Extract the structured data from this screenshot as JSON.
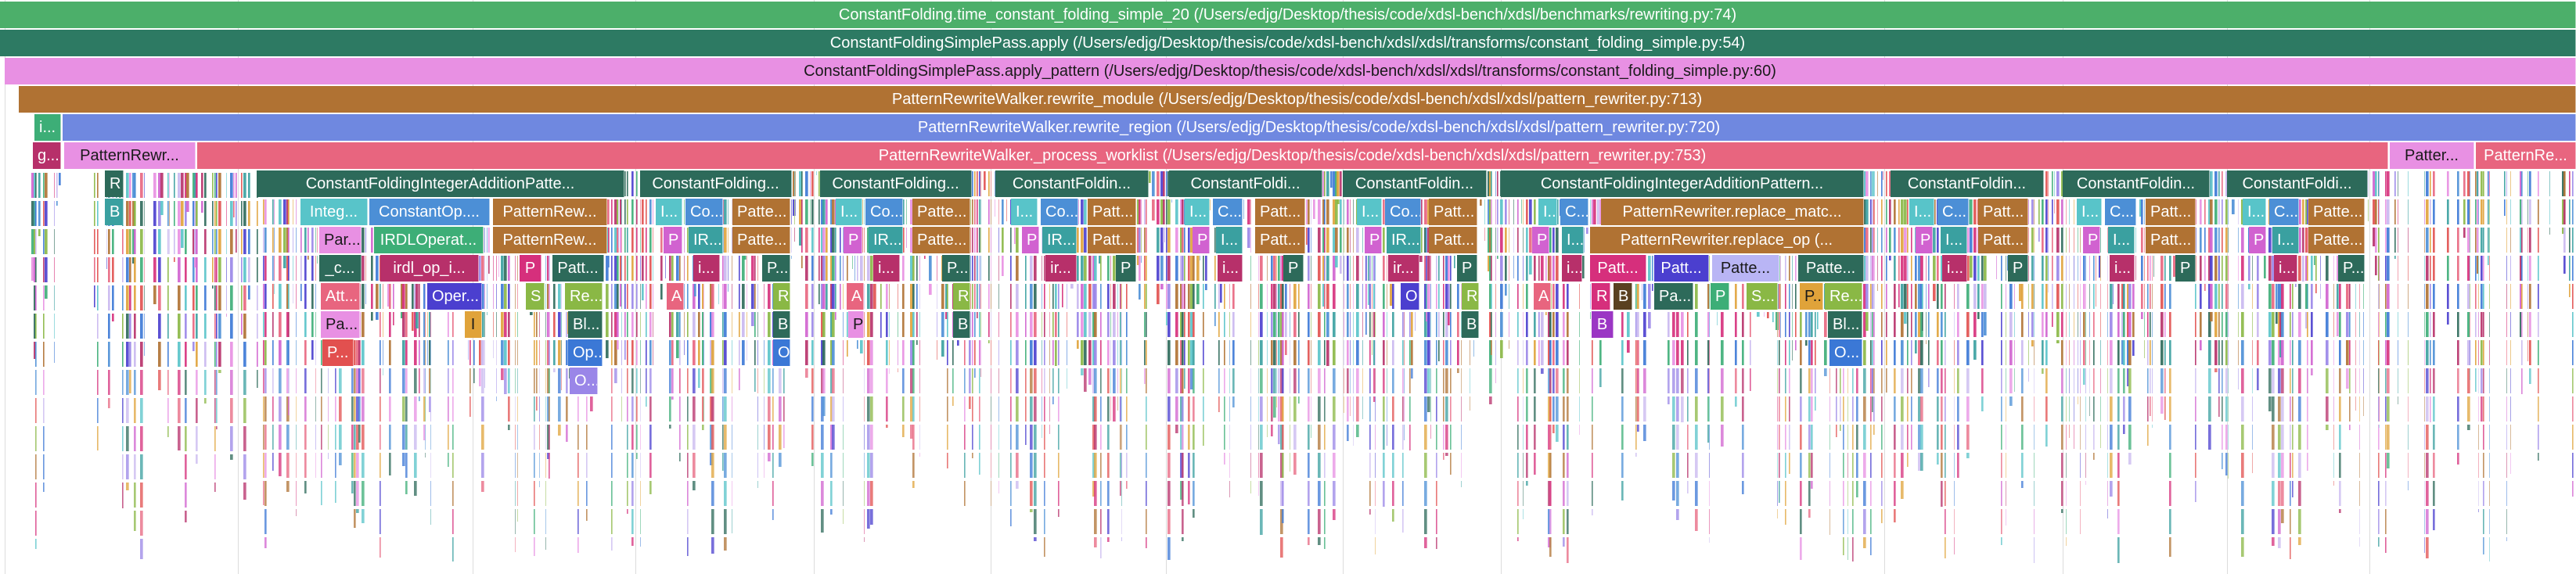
{
  "frames": [
    {
      "id": "f1",
      "label": "ConstantFolding.time_constant_folding_simple_20 (/Users/edjg/Desktop/thesis/code/xdsl-bench/xdsl/benchmarks/rewriting.py:74)",
      "color": "#4caf6a",
      "dark": false
    },
    {
      "id": "f2",
      "label": "ConstantFoldingSimplePass.apply (/Users/edjg/Desktop/thesis/code/xdsl-bench/xdsl/xdsl/transforms/constant_folding_simple.py:54)",
      "color": "#2d7a63",
      "dark": false
    },
    {
      "id": "f3",
      "label": "ConstantFoldingSimplePass.apply_pattern (/Users/edjg/Desktop/thesis/code/xdsl-bench/xdsl/xdsl/transforms/constant_folding_simple.py:60)",
      "color": "#e890e3",
      "dark": true
    },
    {
      "id": "f4",
      "label": "PatternRewriteWalker.rewrite_module (/Users/edjg/Desktop/thesis/code/xdsl-bench/xdsl/xdsl/pattern_rewriter.py:713)",
      "color": "#b07233",
      "dark": false
    },
    {
      "id": "f5",
      "label": "PatternRewriteWalker.rewrite_region (/Users/edjg/Desktop/thesis/code/xdsl-bench/xdsl/xdsl/pattern_rewriter.py:720)",
      "color": "#6f88e0",
      "dark": false
    },
    {
      "id": "f6",
      "label": "PatternRewriteWalker._process_worklist (/Users/edjg/Desktop/thesis/code/xdsl-bench/xdsl/xdsl/pattern_rewriter.py:753)",
      "color": "#e8657f",
      "dark": false
    },
    {
      "id": "s1",
      "label": "i...",
      "color": "#3dae77",
      "dark": false
    },
    {
      "id": "s2",
      "label": "g...",
      "color": "#b7306a",
      "dark": false
    },
    {
      "id": "s3",
      "label": "PatternRewr...",
      "color": "#e890e3",
      "dark": true
    },
    {
      "id": "s4",
      "label": "Patter...",
      "color": "#e890e3",
      "dark": true
    },
    {
      "id": "s5",
      "label": "PatternRe...",
      "color": "#e8657f",
      "dark": false
    },
    {
      "id": "s6",
      "label": "R",
      "color": "#2d6a5a",
      "dark": false
    },
    {
      "id": "s7",
      "label": "B",
      "color": "#3aa0a0",
      "dark": false
    },
    {
      "id": "c1",
      "label": "ConstantFoldingIntegerAdditionPatte...",
      "color": "#2d6a5a",
      "dark": false
    },
    {
      "id": "c2",
      "label": "ConstantFolding...",
      "color": "#2d6a5a",
      "dark": false
    },
    {
      "id": "c3",
      "label": "ConstantFolding...",
      "color": "#2d6a5a",
      "dark": false
    },
    {
      "id": "c4",
      "label": "ConstantFoldin...",
      "color": "#2d6a5a",
      "dark": false
    },
    {
      "id": "c5",
      "label": "ConstantFoldi...",
      "color": "#2d6a5a",
      "dark": false
    },
    {
      "id": "c6",
      "label": "ConstantFoldin...",
      "color": "#2d6a5a",
      "dark": false
    },
    {
      "id": "c7",
      "label": "ConstantFoldingIntegerAdditionPattern...",
      "color": "#2d6a5a",
      "dark": false
    },
    {
      "id": "c8",
      "label": "ConstantFoldin...",
      "color": "#2d6a5a",
      "dark": false
    },
    {
      "id": "c9",
      "label": "ConstantFoldin...",
      "color": "#2d6a5a",
      "dark": false
    },
    {
      "id": "c10",
      "label": "ConstantFoldi...",
      "color": "#2d6a5a",
      "dark": false
    },
    {
      "id": "a1",
      "label": "Integ...",
      "color": "#58c4c9",
      "dark": false
    },
    {
      "id": "a2",
      "label": "ConstantOp....",
      "color": "#4c8fd6",
      "dark": false
    },
    {
      "id": "a3",
      "label": "PatternRew...",
      "color": "#b07233",
      "dark": false
    },
    {
      "id": "a4",
      "label": "Par...",
      "color": "#e890e3",
      "dark": true
    },
    {
      "id": "a5",
      "label": "IRDLOperat...",
      "color": "#3dae77",
      "dark": false
    },
    {
      "id": "a6",
      "label": "PatternRew...",
      "color": "#b07233",
      "dark": false
    },
    {
      "id": "a7",
      "label": "_c...",
      "color": "#2d6a5a",
      "dark": false
    },
    {
      "id": "a8",
      "label": "irdl_op_i...",
      "color": "#b7306a",
      "dark": false
    },
    {
      "id": "a9",
      "label": "P",
      "color": "#d62f7c",
      "dark": false
    },
    {
      "id": "a10",
      "label": "Patt...",
      "color": "#2d6a5a",
      "dark": false
    },
    {
      "id": "a11",
      "label": "Att...",
      "color": "#e8657f",
      "dark": false
    },
    {
      "id": "a12",
      "label": "Oper...",
      "color": "#4b3fcf",
      "dark": false
    },
    {
      "id": "a13",
      "label": "S",
      "color": "#8ab845",
      "dark": false
    },
    {
      "id": "a14",
      "label": "Re...",
      "color": "#8ab845",
      "dark": false
    },
    {
      "id": "a15",
      "label": "Pa...",
      "color": "#e890e3",
      "dark": true
    },
    {
      "id": "a16",
      "label": "I",
      "color": "#e0a33a",
      "dark": true
    },
    {
      "id": "a17",
      "label": "Bl...",
      "color": "#2d6a5a",
      "dark": false
    },
    {
      "id": "a18",
      "label": "P...",
      "color": "#e2504f",
      "dark": false
    },
    {
      "id": "a19",
      "label": "Op...",
      "color": "#3b78d6",
      "dark": false
    },
    {
      "id": "a20",
      "label": "O...",
      "color": "#9a86e8",
      "dark": false
    },
    {
      "id": "b1",
      "label": "I...",
      "color": "#58c4c9",
      "dark": false
    },
    {
      "id": "b2",
      "label": "Co...",
      "color": "#4c8fd6",
      "dark": false
    },
    {
      "id": "b3",
      "label": "Patte...",
      "color": "#b07233",
      "dark": false
    },
    {
      "id": "b4",
      "label": "P",
      "color": "#d162d0",
      "dark": false
    },
    {
      "id": "b5",
      "label": "IR...",
      "color": "#3aa0a0",
      "dark": false
    },
    {
      "id": "b6",
      "label": "Patte...",
      "color": "#b07233",
      "dark": false
    },
    {
      "id": "b7",
      "label": "i...",
      "color": "#b7306a",
      "dark": false
    },
    {
      "id": "b8",
      "label": "P...",
      "color": "#2d6a5a",
      "dark": false
    },
    {
      "id": "b9",
      "label": "A",
      "color": "#e8657f",
      "dark": false
    },
    {
      "id": "b10",
      "label": "R",
      "color": "#8ab845",
      "dark": false
    },
    {
      "id": "b11",
      "label": "B",
      "color": "#2d6a5a",
      "dark": false
    },
    {
      "id": "b12",
      "label": "O",
      "color": "#3b78d6",
      "dark": false
    },
    {
      "id": "d1",
      "label": "I...",
      "color": "#58c4c9",
      "dark": false
    },
    {
      "id": "d2",
      "label": "Co...",
      "color": "#4c8fd6",
      "dark": false
    },
    {
      "id": "d3",
      "label": "Patte...",
      "color": "#b07233",
      "dark": false
    },
    {
      "id": "d4",
      "label": "P",
      "color": "#d162d0",
      "dark": false
    },
    {
      "id": "d5",
      "label": "IR...",
      "color": "#3aa0a0",
      "dark": false
    },
    {
      "id": "d6",
      "label": "Patte...",
      "color": "#b07233",
      "dark": false
    },
    {
      "id": "d7",
      "label": "i...",
      "color": "#b7306a",
      "dark": false
    },
    {
      "id": "d8",
      "label": "P...",
      "color": "#2d6a5a",
      "dark": false
    },
    {
      "id": "d9",
      "label": "A",
      "color": "#e8657f",
      "dark": false
    },
    {
      "id": "d10",
      "label": "R",
      "color": "#8ab845",
      "dark": false
    },
    {
      "id": "d11",
      "label": "P",
      "color": "#e890e3",
      "dark": true
    },
    {
      "id": "d12",
      "label": "B",
      "color": "#2d6a5a",
      "dark": false
    },
    {
      "id": "e1",
      "label": "I...",
      "color": "#58c4c9",
      "dark": false
    },
    {
      "id": "e2",
      "label": "Co...",
      "color": "#4c8fd6",
      "dark": false
    },
    {
      "id": "e3",
      "label": "Patt...",
      "color": "#b07233",
      "dark": false
    },
    {
      "id": "e4",
      "label": "P",
      "color": "#d162d0",
      "dark": false
    },
    {
      "id": "e5",
      "label": "IR...",
      "color": "#3aa0a0",
      "dark": false
    },
    {
      "id": "e6",
      "label": "Patt...",
      "color": "#b07233",
      "dark": false
    },
    {
      "id": "e7",
      "label": "ir...",
      "color": "#b7306a",
      "dark": false
    },
    {
      "id": "e8",
      "label": "P",
      "color": "#2d6a5a",
      "dark": false
    },
    {
      "id": "g1",
      "label": "I...",
      "color": "#58c4c9",
      "dark": false
    },
    {
      "id": "g2",
      "label": "C...",
      "color": "#4c8fd6",
      "dark": false
    },
    {
      "id": "g3",
      "label": "Patt...",
      "color": "#b07233",
      "dark": false
    },
    {
      "id": "g4",
      "label": "P",
      "color": "#d162d0",
      "dark": false
    },
    {
      "id": "g5",
      "label": "I...",
      "color": "#3aa0a0",
      "dark": false
    },
    {
      "id": "g6",
      "label": "Patt...",
      "color": "#b07233",
      "dark": false
    },
    {
      "id": "g7",
      "label": "i...",
      "color": "#b7306a",
      "dark": false
    },
    {
      "id": "g8",
      "label": "P",
      "color": "#2d6a5a",
      "dark": false
    },
    {
      "id": "h1",
      "label": "I...",
      "color": "#58c4c9",
      "dark": false
    },
    {
      "id": "h2",
      "label": "Co...",
      "color": "#4c8fd6",
      "dark": false
    },
    {
      "id": "h3",
      "label": "Patt...",
      "color": "#b07233",
      "dark": false
    },
    {
      "id": "h4",
      "label": "P",
      "color": "#d162d0",
      "dark": false
    },
    {
      "id": "h5",
      "label": "IR...",
      "color": "#3aa0a0",
      "dark": false
    },
    {
      "id": "h6",
      "label": "Patt...",
      "color": "#b07233",
      "dark": false
    },
    {
      "id": "h7",
      "label": "ir...",
      "color": "#b7306a",
      "dark": false
    },
    {
      "id": "h8",
      "label": "P",
      "color": "#2d6a5a",
      "dark": false
    },
    {
      "id": "h9",
      "label": "O",
      "color": "#4b3fcf",
      "dark": false
    },
    {
      "id": "h10",
      "label": "R",
      "color": "#8ab845",
      "dark": false
    },
    {
      "id": "h11",
      "label": "B",
      "color": "#2d6a5a",
      "dark": false
    },
    {
      "id": "k1",
      "label": "I...",
      "color": "#58c4c9",
      "dark": false
    },
    {
      "id": "k2",
      "label": "C...",
      "color": "#4c8fd6",
      "dark": false
    },
    {
      "id": "k3",
      "label": "PatternRewriter.replace_matc...",
      "color": "#b07233",
      "dark": false
    },
    {
      "id": "k4",
      "label": "P",
      "color": "#d162d0",
      "dark": false
    },
    {
      "id": "k5",
      "label": "I...",
      "color": "#3aa0a0",
      "dark": false
    },
    {
      "id": "k6",
      "label": "PatternRewriter.replace_op (...",
      "color": "#b07233",
      "dark": false
    },
    {
      "id": "k7",
      "label": "i...",
      "color": "#b7306a",
      "dark": false
    },
    {
      "id": "k8",
      "label": "Patt...",
      "color": "#d62f7c",
      "dark": false
    },
    {
      "id": "k9",
      "label": "Patt...",
      "color": "#4b3fcf",
      "dark": false
    },
    {
      "id": "k10",
      "label": "Patte...",
      "color": "#b9b5f5",
      "dark": true
    },
    {
      "id": "k11",
      "label": "Patte...",
      "color": "#2d6a5a",
      "dark": false
    },
    {
      "id": "k12",
      "label": "A",
      "color": "#e8657f",
      "dark": false
    },
    {
      "id": "k13",
      "label": "R",
      "color": "#d62f7c",
      "dark": false
    },
    {
      "id": "k14",
      "label": "B",
      "color": "#5a4020",
      "dark": false
    },
    {
      "id": "k15",
      "label": "Pa...",
      "color": "#2d6a5a",
      "dark": false
    },
    {
      "id": "k16",
      "label": "P",
      "color": "#3dae77",
      "dark": false
    },
    {
      "id": "k17",
      "label": "S...",
      "color": "#8ab845",
      "dark": false
    },
    {
      "id": "k18",
      "label": "P...",
      "color": "#e0a33a",
      "dark": true
    },
    {
      "id": "k19",
      "label": "Re...",
      "color": "#8ab845",
      "dark": false
    },
    {
      "id": "k20",
      "label": "B",
      "color": "#9b36c4",
      "dark": false
    },
    {
      "id": "k21",
      "label": "Bl...",
      "color": "#2d6a5a",
      "dark": false
    },
    {
      "id": "k22",
      "label": "O...",
      "color": "#3b78d6",
      "dark": false
    },
    {
      "id": "m1",
      "label": "I...",
      "color": "#58c4c9",
      "dark": false
    },
    {
      "id": "m2",
      "label": "C...",
      "color": "#4c8fd6",
      "dark": false
    },
    {
      "id": "m3",
      "label": "Patt...",
      "color": "#b07233",
      "dark": false
    },
    {
      "id": "m4",
      "label": "P",
      "color": "#d162d0",
      "dark": false
    },
    {
      "id": "m5",
      "label": "I...",
      "color": "#3aa0a0",
      "dark": false
    },
    {
      "id": "m6",
      "label": "Patt...",
      "color": "#b07233",
      "dark": false
    },
    {
      "id": "m7",
      "label": "i...",
      "color": "#b7306a",
      "dark": false
    },
    {
      "id": "m8",
      "label": "P",
      "color": "#2d6a5a",
      "dark": false
    },
    {
      "id": "n1",
      "label": "I...",
      "color": "#58c4c9",
      "dark": false
    },
    {
      "id": "n2",
      "label": "C...",
      "color": "#4c8fd6",
      "dark": false
    },
    {
      "id": "n3",
      "label": "Patt...",
      "color": "#b07233",
      "dark": false
    },
    {
      "id": "n4",
      "label": "P",
      "color": "#d162d0",
      "dark": false
    },
    {
      "id": "n5",
      "label": "I...",
      "color": "#3aa0a0",
      "dark": false
    },
    {
      "id": "n6",
      "label": "Patt...",
      "color": "#b07233",
      "dark": false
    },
    {
      "id": "n7",
      "label": "i...",
      "color": "#b7306a",
      "dark": false
    },
    {
      "id": "n8",
      "label": "P",
      "color": "#2d6a5a",
      "dark": false
    },
    {
      "id": "p1",
      "label": "I...",
      "color": "#58c4c9",
      "dark": false
    },
    {
      "id": "p2",
      "label": "C...",
      "color": "#4c8fd6",
      "dark": false
    },
    {
      "id": "p3",
      "label": "Patte...",
      "color": "#b07233",
      "dark": false
    },
    {
      "id": "p4",
      "label": "P",
      "color": "#d162d0",
      "dark": false
    },
    {
      "id": "p5",
      "label": "I...",
      "color": "#3aa0a0",
      "dark": false
    },
    {
      "id": "p6",
      "label": "Patte...",
      "color": "#b07233",
      "dark": false
    },
    {
      "id": "p7",
      "label": "i...",
      "color": "#b7306a",
      "dark": false
    },
    {
      "id": "p8",
      "label": "P...",
      "color": "#2d6a5a",
      "dark": false
    }
  ],
  "sliver_palette": [
    "#58c4c9",
    "#4c8fd6",
    "#b07233",
    "#d162d0",
    "#3aa0a0",
    "#2d6a5a",
    "#b7306a",
    "#e8657f",
    "#8ab845",
    "#3b78d6",
    "#4b3fcf",
    "#e890e3",
    "#9a86e8",
    "#3dae77",
    "#e0a33a",
    "#d62f7c",
    "#e2504f",
    "#c9b8f0"
  ]
}
